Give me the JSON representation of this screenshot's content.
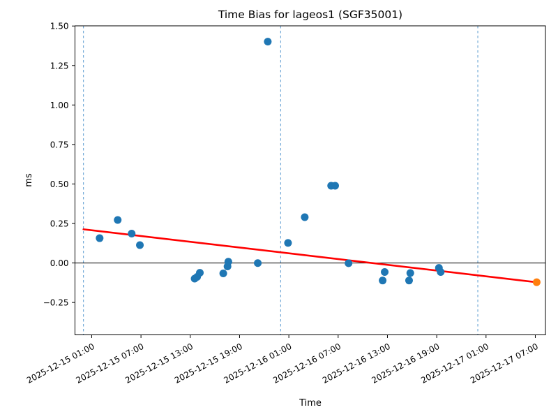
{
  "chart_data": {
    "type": "scatter",
    "title": "Time Bias for lageos1 (SGF35001)",
    "xlabel": "Time",
    "ylabel": "ms",
    "xlim": [
      "2025-12-14 22:58",
      "2025-12-17 08:14"
    ],
    "ylim": [
      -0.455,
      1.501
    ],
    "grid": "off",
    "legend": "none",
    "x_tick_labels": [
      "2025-12-15 01:00",
      "2025-12-15 07:00",
      "2025-12-15 13:00",
      "2025-12-15 19:00",
      "2025-12-16 01:00",
      "2025-12-16 07:00",
      "2025-12-16 13:00",
      "2025-12-16 19:00",
      "2025-12-17 01:00",
      "2025-12-17 07:00"
    ],
    "y_ticks": [
      {
        "v": -0.25,
        "label": "−0.25"
      },
      {
        "v": 0.0,
        "label": "0.00"
      },
      {
        "v": 0.25,
        "label": "0.25"
      },
      {
        "v": 0.5,
        "label": "0.50"
      },
      {
        "v": 0.75,
        "label": "0.75"
      },
      {
        "v": 1.0,
        "label": "1.00"
      },
      {
        "v": 1.25,
        "label": "1.25"
      },
      {
        "v": 1.5,
        "label": "1.50"
      }
    ],
    "day_boundary_lines": [
      "2025-12-15 00:00",
      "2025-12-16 00:00",
      "2025-12-17 00:00"
    ],
    "zero_line": 0.0,
    "series": [
      {
        "name": "time-bias-points",
        "points": [
          {
            "t": "2025-12-15 01:58",
            "ms": 0.157
          },
          {
            "t": "2025-12-15 04:10",
            "ms": 0.272
          },
          {
            "t": "2025-12-15 05:52",
            "ms": 0.186
          },
          {
            "t": "2025-12-15 06:52",
            "ms": 0.113
          },
          {
            "t": "2025-12-15 13:32",
            "ms": -0.099
          },
          {
            "t": "2025-12-15 13:50",
            "ms": -0.088
          },
          {
            "t": "2025-12-15 14:10",
            "ms": -0.062
          },
          {
            "t": "2025-12-15 17:01",
            "ms": -0.066
          },
          {
            "t": "2025-12-15 17:32",
            "ms": -0.022
          },
          {
            "t": "2025-12-15 17:38",
            "ms": 0.008
          },
          {
            "t": "2025-12-15 21:13",
            "ms": -0.001
          },
          {
            "t": "2025-12-15 22:26",
            "ms": 1.401
          },
          {
            "t": "2025-12-16 00:54",
            "ms": 0.127
          },
          {
            "t": "2025-12-16 02:56",
            "ms": 0.29
          },
          {
            "t": "2025-12-16 06:09",
            "ms": 0.489
          },
          {
            "t": "2025-12-16 06:38",
            "ms": 0.489
          },
          {
            "t": "2025-12-16 08:16",
            "ms": -0.002
          },
          {
            "t": "2025-12-16 12:25",
            "ms": -0.111
          },
          {
            "t": "2025-12-16 12:40",
            "ms": -0.057
          },
          {
            "t": "2025-12-16 15:38",
            "ms": -0.111
          },
          {
            "t": "2025-12-16 15:47",
            "ms": -0.064
          },
          {
            "t": "2025-12-16 19:16",
            "ms": -0.031
          },
          {
            "t": "2025-12-16 19:29",
            "ms": -0.057
          }
        ]
      },
      {
        "name": "latest-point",
        "points": [
          {
            "t": "2025-12-17 07:10",
            "ms": -0.122
          }
        ]
      }
    ],
    "trend_line": {
      "start": {
        "t": "2025-12-15 00:00",
        "ms": 0.213
      },
      "end": {
        "t": "2025-12-17 07:10",
        "ms": -0.122
      }
    },
    "style": {
      "point_color": "#1f77b4",
      "highlight_point_color": "#ff7f0e",
      "trend_color": "#ff0000",
      "day_line_color": "#5b9bd0",
      "zero_line_color": "#000000",
      "spine_color": "#000000"
    }
  }
}
